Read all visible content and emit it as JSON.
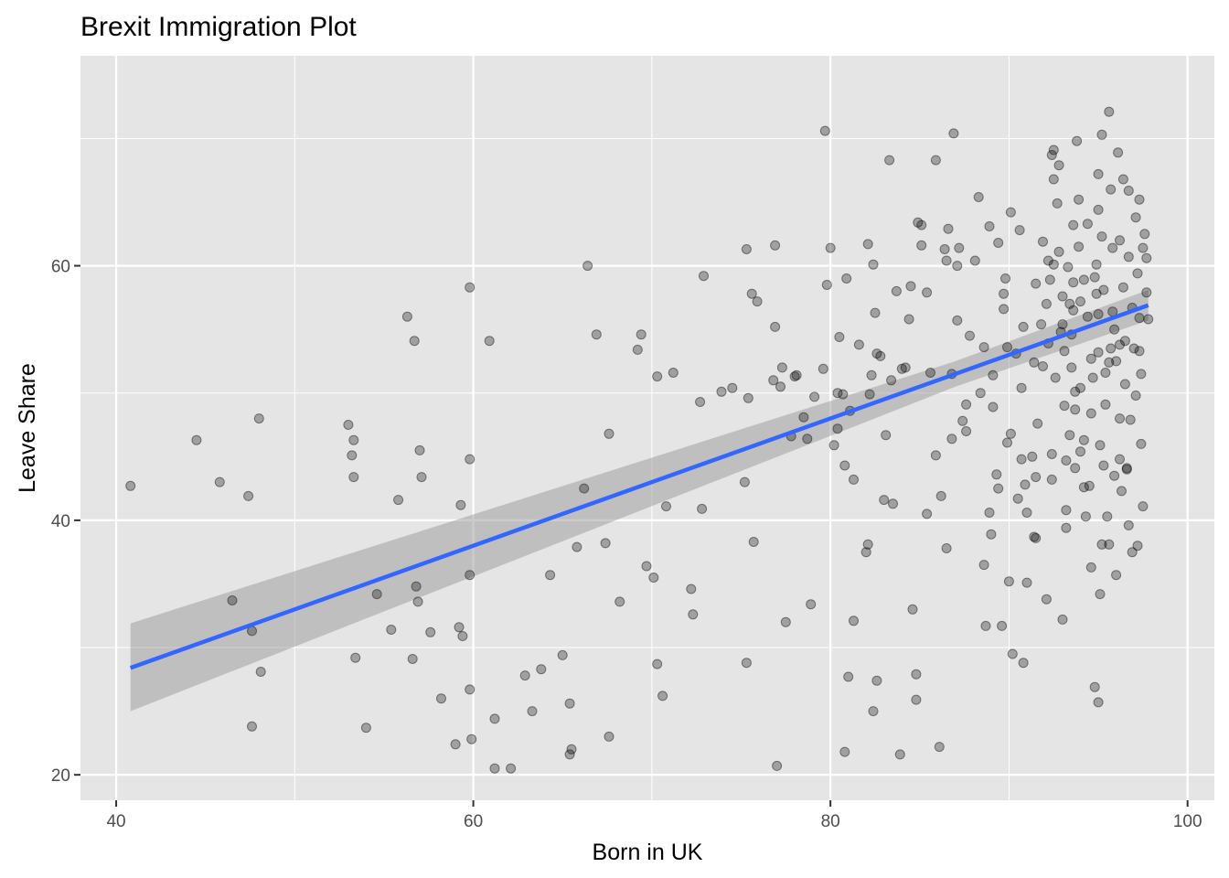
{
  "chart_data": {
    "type": "scatter",
    "title": "Brexit Immigration Plot",
    "xlabel": "Born in UK",
    "ylabel": "Leave Share",
    "xlim": [
      38,
      101.5
    ],
    "ylim": [
      18,
      76.5
    ],
    "x_ticks": [
      40,
      60,
      80,
      100
    ],
    "y_ticks": [
      20,
      40,
      60
    ],
    "x_minor": [
      50,
      70,
      90
    ],
    "y_minor": [
      30,
      50,
      70
    ],
    "grid": true,
    "legend": "none",
    "colors": {
      "panel": "#e5e5e5",
      "grid": "#ffffff",
      "point": "#000000",
      "fit_line": "#3366ff",
      "ribbon": "#999999"
    },
    "fit": {
      "method": "linear",
      "x": [
        40.8,
        97.8
      ],
      "y": [
        28.4,
        56.9
      ],
      "ci_lower": [
        25.0,
        55.7
      ],
      "ci_upper": [
        31.9,
        58.1
      ],
      "ci_mid": {
        "x": 87.0,
        "lower": 50.5,
        "upper": 52.5
      }
    },
    "points": [
      [
        40.8,
        42.7
      ],
      [
        44.5,
        46.3
      ],
      [
        45.8,
        43.0
      ],
      [
        46.5,
        33.7
      ],
      [
        47.4,
        41.9
      ],
      [
        47.6,
        31.3
      ],
      [
        47.6,
        23.8
      ],
      [
        48.0,
        48.0
      ],
      [
        48.1,
        28.1
      ],
      [
        53.0,
        47.5
      ],
      [
        53.2,
        45.1
      ],
      [
        53.3,
        46.3
      ],
      [
        53.3,
        43.4
      ],
      [
        53.4,
        29.2
      ],
      [
        54.0,
        23.7
      ],
      [
        54.6,
        34.2
      ],
      [
        55.4,
        31.4
      ],
      [
        55.8,
        41.6
      ],
      [
        56.3,
        56.0
      ],
      [
        56.6,
        29.1
      ],
      [
        56.7,
        54.1
      ],
      [
        56.8,
        34.8
      ],
      [
        56.9,
        33.6
      ],
      [
        57.0,
        45.5
      ],
      [
        57.1,
        43.4
      ],
      [
        57.6,
        31.2
      ],
      [
        58.2,
        26.0
      ],
      [
        59.0,
        22.4
      ],
      [
        59.2,
        31.6
      ],
      [
        59.3,
        41.2
      ],
      [
        59.4,
        30.9
      ],
      [
        59.8,
        58.3
      ],
      [
        59.8,
        44.8
      ],
      [
        59.8,
        35.7
      ],
      [
        59.8,
        26.7
      ],
      [
        59.9,
        22.8
      ],
      [
        60.9,
        54.1
      ],
      [
        61.2,
        24.4
      ],
      [
        61.2,
        20.5
      ],
      [
        62.1,
        20.5
      ],
      [
        62.9,
        27.8
      ],
      [
        63.3,
        25.0
      ],
      [
        63.8,
        28.3
      ],
      [
        64.3,
        35.7
      ],
      [
        65.0,
        29.4
      ],
      [
        65.4,
        25.6
      ],
      [
        65.4,
        21.6
      ],
      [
        65.5,
        22.0
      ],
      [
        65.8,
        37.9
      ],
      [
        66.2,
        42.5
      ],
      [
        66.4,
        60.0
      ],
      [
        66.9,
        54.6
      ],
      [
        67.4,
        38.2
      ],
      [
        67.6,
        46.8
      ],
      [
        67.6,
        23.0
      ],
      [
        68.2,
        33.6
      ],
      [
        69.2,
        53.4
      ],
      [
        69.4,
        54.6
      ],
      [
        69.7,
        36.4
      ],
      [
        70.1,
        35.5
      ],
      [
        70.3,
        28.7
      ],
      [
        70.3,
        51.3
      ],
      [
        70.6,
        26.2
      ],
      [
        70.8,
        41.1
      ],
      [
        71.2,
        51.6
      ],
      [
        72.2,
        34.6
      ],
      [
        72.3,
        32.6
      ],
      [
        72.7,
        49.3
      ],
      [
        72.8,
        40.9
      ],
      [
        72.9,
        59.2
      ],
      [
        73.9,
        50.1
      ],
      [
        74.5,
        50.4
      ],
      [
        75.2,
        43.0
      ],
      [
        75.3,
        61.3
      ],
      [
        75.3,
        28.8
      ],
      [
        75.4,
        49.6
      ],
      [
        75.6,
        57.8
      ],
      [
        75.7,
        38.3
      ],
      [
        75.9,
        57.2
      ],
      [
        76.8,
        51.0
      ],
      [
        76.9,
        55.2
      ],
      [
        76.9,
        61.6
      ],
      [
        77.0,
        20.7
      ],
      [
        77.2,
        50.5
      ],
      [
        77.3,
        52.0
      ],
      [
        77.5,
        32.0
      ],
      [
        77.8,
        46.6
      ],
      [
        78.0,
        51.3
      ],
      [
        78.1,
        51.4
      ],
      [
        78.5,
        48.1
      ],
      [
        78.7,
        46.4
      ],
      [
        78.9,
        33.4
      ],
      [
        79.1,
        49.7
      ],
      [
        79.6,
        51.9
      ],
      [
        79.7,
        70.6
      ],
      [
        79.8,
        58.5
      ],
      [
        80.0,
        61.4
      ],
      [
        80.2,
        45.9
      ],
      [
        80.4,
        47.2
      ],
      [
        80.4,
        50.0
      ],
      [
        80.5,
        54.4
      ],
      [
        80.7,
        49.9
      ],
      [
        80.8,
        44.3
      ],
      [
        80.8,
        21.8
      ],
      [
        80.9,
        59.0
      ],
      [
        81.0,
        27.7
      ],
      [
        81.1,
        48.6
      ],
      [
        81.3,
        32.1
      ],
      [
        81.3,
        43.2
      ],
      [
        81.6,
        53.8
      ],
      [
        82.0,
        37.5
      ],
      [
        82.1,
        38.1
      ],
      [
        82.1,
        61.7
      ],
      [
        82.2,
        49.9
      ],
      [
        82.3,
        51.4
      ],
      [
        82.4,
        60.1
      ],
      [
        82.4,
        25.0
      ],
      [
        82.5,
        56.3
      ],
      [
        82.6,
        27.4
      ],
      [
        82.6,
        53.1
      ],
      [
        82.8,
        52.9
      ],
      [
        83.0,
        41.6
      ],
      [
        83.1,
        46.7
      ],
      [
        83.3,
        68.3
      ],
      [
        83.4,
        51.0
      ],
      [
        83.5,
        41.3
      ],
      [
        83.7,
        58.0
      ],
      [
        83.9,
        21.6
      ],
      [
        84.0,
        51.9
      ],
      [
        84.2,
        52.0
      ],
      [
        84.4,
        55.8
      ],
      [
        84.5,
        58.4
      ],
      [
        84.6,
        33.0
      ],
      [
        84.8,
        27.9
      ],
      [
        84.8,
        25.9
      ],
      [
        84.9,
        63.4
      ],
      [
        85.1,
        63.2
      ],
      [
        85.1,
        61.6
      ],
      [
        85.4,
        57.9
      ],
      [
        85.6,
        51.6
      ],
      [
        85.9,
        68.3
      ],
      [
        85.9,
        45.1
      ],
      [
        86.1,
        22.2
      ],
      [
        86.4,
        61.3
      ],
      [
        86.5,
        60.4
      ],
      [
        86.5,
        37.8
      ],
      [
        86.6,
        62.9
      ],
      [
        86.8,
        51.5
      ],
      [
        86.9,
        70.4
      ],
      [
        87.1,
        60.0
      ],
      [
        87.2,
        61.4
      ],
      [
        87.4,
        47.8
      ],
      [
        87.6,
        47.0
      ],
      [
        88.1,
        60.4
      ],
      [
        88.3,
        65.4
      ],
      [
        88.6,
        53.6
      ],
      [
        88.7,
        31.7
      ],
      [
        88.9,
        40.6
      ],
      [
        89.1,
        51.4
      ],
      [
        89.1,
        48.9
      ],
      [
        89.0,
        38.9
      ],
      [
        89.3,
        43.6
      ],
      [
        89.4,
        42.5
      ],
      [
        89.7,
        57.8
      ],
      [
        89.7,
        56.6
      ],
      [
        89.9,
        53.6
      ],
      [
        89.9,
        46.1
      ],
      [
        90.0,
        35.2
      ],
      [
        90.1,
        46.8
      ],
      [
        90.1,
        64.2
      ],
      [
        90.4,
        53.1
      ],
      [
        90.5,
        41.7
      ],
      [
        90.7,
        44.8
      ],
      [
        90.9,
        42.8
      ],
      [
        91.0,
        40.6
      ],
      [
        91.3,
        45.0
      ],
      [
        91.4,
        38.7
      ],
      [
        91.5,
        43.4
      ],
      [
        91.5,
        38.6
      ],
      [
        91.5,
        58.6
      ],
      [
        91.6,
        47.6
      ],
      [
        91.8,
        55.4
      ],
      [
        91.9,
        52.1
      ],
      [
        92.1,
        57.0
      ],
      [
        92.2,
        60.4
      ],
      [
        92.3,
        58.9
      ],
      [
        92.4,
        45.2
      ],
      [
        92.4,
        43.2
      ],
      [
        92.4,
        68.7
      ],
      [
        92.5,
        69.1
      ],
      [
        92.5,
        66.8
      ],
      [
        92.5,
        60.1
      ],
      [
        92.7,
        64.9
      ],
      [
        92.8,
        67.9
      ],
      [
        92.8,
        61.1
      ],
      [
        93.0,
        57.6
      ],
      [
        93.0,
        55.4
      ],
      [
        93.1,
        53.3
      ],
      [
        93.1,
        49.0
      ],
      [
        93.2,
        44.7
      ],
      [
        93.2,
        40.8
      ],
      [
        93.2,
        39.4
      ],
      [
        93.3,
        59.9
      ],
      [
        93.4,
        57.0
      ],
      [
        93.5,
        54.6
      ],
      [
        93.5,
        52.0
      ],
      [
        93.6,
        63.2
      ],
      [
        93.6,
        58.7
      ],
      [
        93.7,
        48.7
      ],
      [
        93.7,
        44.1
      ],
      [
        93.8,
        69.8
      ],
      [
        93.9,
        65.2
      ],
      [
        93.9,
        61.5
      ],
      [
        94.0,
        57.2
      ],
      [
        94.0,
        50.4
      ],
      [
        94.2,
        46.3
      ],
      [
        94.2,
        42.6
      ],
      [
        94.3,
        40.3
      ],
      [
        94.4,
        63.3
      ],
      [
        94.4,
        56.0
      ],
      [
        94.6,
        52.7
      ],
      [
        94.6,
        48.4
      ],
      [
        94.6,
        36.3
      ],
      [
        94.8,
        59.1
      ],
      [
        94.9,
        60.1
      ],
      [
        94.9,
        57.8
      ],
      [
        95.0,
        67.2
      ],
      [
        95.0,
        64.4
      ],
      [
        95.0,
        53.2
      ],
      [
        95.1,
        45.9
      ],
      [
        95.1,
        34.2
      ],
      [
        95.2,
        70.3
      ],
      [
        95.2,
        62.3
      ],
      [
        95.3,
        58.1
      ],
      [
        95.4,
        51.6
      ],
      [
        95.4,
        49.1
      ],
      [
        95.5,
        40.3
      ],
      [
        95.6,
        38.1
      ],
      [
        95.6,
        72.1
      ],
      [
        95.7,
        66.0
      ],
      [
        95.8,
        61.4
      ],
      [
        95.8,
        56.4
      ],
      [
        95.9,
        55.0
      ],
      [
        96.0,
        52.5
      ],
      [
        96.1,
        68.9
      ],
      [
        96.2,
        62.0
      ],
      [
        96.2,
        44.8
      ],
      [
        96.3,
        42.3
      ],
      [
        96.4,
        58.3
      ],
      [
        96.5,
        54.1
      ],
      [
        96.5,
        50.7
      ],
      [
        96.7,
        65.9
      ],
      [
        96.7,
        60.7
      ],
      [
        96.8,
        47.9
      ],
      [
        96.9,
        56.7
      ],
      [
        97.0,
        53.5
      ],
      [
        97.1,
        63.8
      ],
      [
        97.2,
        59.4
      ],
      [
        97.3,
        55.9
      ],
      [
        97.4,
        51.5
      ],
      [
        97.4,
        46.0
      ],
      [
        97.5,
        41.1
      ],
      [
        97.6,
        62.5
      ],
      [
        97.7,
        57.9
      ],
      [
        97.8,
        55.8
      ],
      [
        97.3,
        65.2
      ],
      [
        96.4,
        66.8
      ],
      [
        95.7,
        53.5
      ],
      [
        95.0,
        56.2
      ],
      [
        94.2,
        58.9
      ],
      [
        93.6,
        56.5
      ],
      [
        92.9,
        54.8
      ],
      [
        92.2,
        53.9
      ],
      [
        91.4,
        52.4
      ],
      [
        90.7,
        50.4
      ],
      [
        88.4,
        50.0
      ],
      [
        87.6,
        49.1
      ],
      [
        86.8,
        46.4
      ],
      [
        86.2,
        41.9
      ],
      [
        85.4,
        40.5
      ],
      [
        93.4,
        46.7
      ],
      [
        94.0,
        45.4
      ],
      [
        94.5,
        42.7
      ],
      [
        95.2,
        38.1
      ],
      [
        96.0,
        35.7
      ],
      [
        96.7,
        39.6
      ],
      [
        91.0,
        35.1
      ],
      [
        92.1,
        33.8
      ],
      [
        93.0,
        32.2
      ],
      [
        90.2,
        29.5
      ],
      [
        90.8,
        28.8
      ],
      [
        94.8,
        26.9
      ],
      [
        95.0,
        25.7
      ],
      [
        88.6,
        36.5
      ],
      [
        89.6,
        31.7
      ],
      [
        87.8,
        54.5
      ],
      [
        87.1,
        55.7
      ],
      [
        89.4,
        61.8
      ],
      [
        88.9,
        63.1
      ],
      [
        90.6,
        62.8
      ],
      [
        91.9,
        61.9
      ],
      [
        96.9,
        37.5
      ],
      [
        97.2,
        38.0
      ],
      [
        95.9,
        43.5
      ],
      [
        95.3,
        44.3
      ],
      [
        96.6,
        44.0
      ],
      [
        96.6,
        44.1
      ],
      [
        97.1,
        49.8
      ],
      [
        96.2,
        48.0
      ],
      [
        90.8,
        55.2
      ],
      [
        89.8,
        59.0
      ],
      [
        92.6,
        51.2
      ],
      [
        93.7,
        50.1
      ],
      [
        94.7,
        51.2
      ],
      [
        95.6,
        52.4
      ],
      [
        96.2,
        53.8
      ],
      [
        97.3,
        53.3
      ],
      [
        97.7,
        60.6
      ],
      [
        97.5,
        61.4
      ]
    ]
  }
}
